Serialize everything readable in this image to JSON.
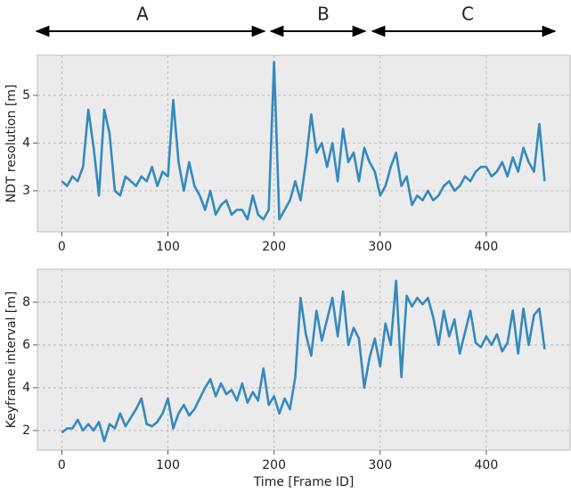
{
  "annotations": [
    {
      "label": "A"
    },
    {
      "label": "B"
    },
    {
      "label": "C"
    }
  ],
  "chart_data": [
    {
      "type": "line",
      "ylabel": "NDT resolution [m]",
      "x": [
        0,
        5,
        10,
        15,
        20,
        25,
        30,
        35,
        40,
        45,
        50,
        55,
        60,
        65,
        70,
        75,
        80,
        85,
        90,
        95,
        100,
        105,
        110,
        115,
        120,
        125,
        130,
        135,
        140,
        145,
        150,
        155,
        160,
        165,
        170,
        175,
        180,
        185,
        190,
        195,
        200,
        205,
        210,
        215,
        220,
        225,
        230,
        235,
        240,
        245,
        250,
        255,
        260,
        265,
        270,
        275,
        280,
        285,
        290,
        295,
        300,
        305,
        310,
        315,
        320,
        325,
        330,
        335,
        340,
        345,
        350,
        355,
        360,
        365,
        370,
        375,
        380,
        385,
        390,
        395,
        400,
        405,
        410,
        415,
        420,
        425,
        430,
        435,
        440,
        445,
        450,
        455
      ],
      "series": [
        {
          "color": "#348abd",
          "values": [
            3.2,
            3.1,
            3.3,
            3.2,
            3.5,
            4.7,
            3.9,
            2.9,
            4.7,
            4.2,
            3.0,
            2.9,
            3.3,
            3.2,
            3.1,
            3.3,
            3.2,
            3.5,
            3.1,
            3.4,
            3.3,
            4.9,
            3.6,
            3.0,
            3.6,
            3.1,
            2.9,
            2.6,
            3.0,
            2.5,
            2.7,
            2.8,
            2.5,
            2.6,
            2.6,
            2.4,
            2.9,
            2.5,
            2.4,
            2.6,
            5.7,
            2.4,
            2.6,
            2.8,
            3.2,
            2.8,
            3.6,
            4.6,
            3.8,
            4.0,
            3.5,
            4.0,
            3.2,
            4.3,
            3.6,
            3.8,
            3.2,
            3.9,
            3.6,
            3.4,
            2.9,
            3.1,
            3.5,
            3.8,
            3.1,
            3.3,
            2.7,
            2.9,
            2.8,
            3.0,
            2.8,
            2.9,
            3.1,
            3.2,
            3.0,
            3.1,
            3.3,
            3.2,
            3.4,
            3.5,
            3.5,
            3.3,
            3.4,
            3.6,
            3.3,
            3.7,
            3.4,
            3.9,
            3.6,
            3.4,
            4.4,
            3.2
          ]
        }
      ],
      "xlim": [
        -23,
        479
      ],
      "xticks": [
        0,
        100,
        200,
        300,
        400
      ],
      "ylim": [
        2.14,
        5.84
      ],
      "yticks": [
        3,
        4,
        5
      ],
      "grid": true
    },
    {
      "type": "line",
      "xlabel": "Time [Frame ID]",
      "ylabel": "Keyframe interval [m]",
      "x": [
        0,
        5,
        10,
        15,
        20,
        25,
        30,
        35,
        40,
        45,
        50,
        55,
        60,
        65,
        70,
        75,
        80,
        85,
        90,
        95,
        100,
        105,
        110,
        115,
        120,
        125,
        130,
        135,
        140,
        145,
        150,
        155,
        160,
        165,
        170,
        175,
        180,
        185,
        190,
        195,
        200,
        205,
        210,
        215,
        220,
        225,
        230,
        235,
        240,
        245,
        250,
        255,
        260,
        265,
        270,
        275,
        280,
        285,
        290,
        295,
        300,
        305,
        310,
        315,
        320,
        325,
        330,
        335,
        340,
        345,
        350,
        355,
        360,
        365,
        370,
        375,
        380,
        385,
        390,
        395,
        400,
        405,
        410,
        415,
        420,
        425,
        430,
        435,
        440,
        445,
        450,
        455
      ],
      "series": [
        {
          "color": "#348abd",
          "values": [
            1.9,
            2.1,
            2.1,
            2.5,
            2.0,
            2.3,
            2.0,
            2.4,
            1.5,
            2.3,
            2.1,
            2.8,
            2.2,
            2.6,
            3.0,
            3.5,
            2.3,
            2.2,
            2.4,
            2.8,
            3.5,
            2.1,
            2.8,
            3.2,
            2.7,
            3.0,
            3.5,
            4.0,
            4.4,
            3.6,
            4.2,
            3.7,
            3.9,
            3.4,
            4.2,
            3.3,
            3.8,
            3.4,
            4.9,
            3.2,
            3.6,
            2.8,
            3.5,
            3.0,
            4.5,
            8.2,
            6.5,
            5.5,
            7.6,
            6.2,
            7.2,
            8.2,
            6.4,
            8.5,
            6.0,
            6.8,
            6.3,
            4.0,
            5.4,
            6.3,
            5.0,
            7.0,
            6.0,
            9.0,
            4.5,
            8.3,
            7.8,
            8.2,
            7.9,
            8.2,
            7.3,
            6.0,
            7.6,
            6.4,
            7.2,
            5.6,
            6.6,
            7.6,
            6.1,
            5.9,
            6.4,
            6.0,
            6.5,
            5.7,
            6.1,
            7.6,
            5.6,
            7.7,
            6.0,
            7.4,
            7.7,
            5.8
          ]
        }
      ],
      "xlim": [
        -23,
        479
      ],
      "xticks": [
        0,
        100,
        200,
        300,
        400
      ],
      "ylim": [
        1.08,
        9.54
      ],
      "yticks": [
        2,
        4,
        6,
        8
      ],
      "grid": true
    }
  ]
}
